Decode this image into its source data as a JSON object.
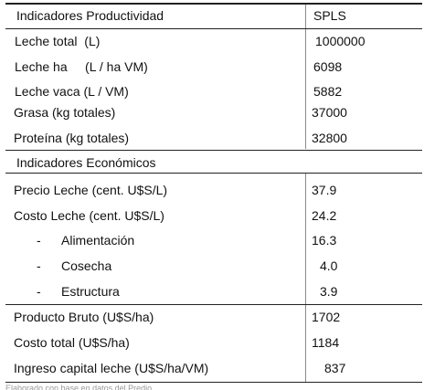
{
  "productivity": {
    "header_label": "Indicadores Productividad",
    "header_value": "SPLS",
    "rows": [
      {
        "label": "Leche total  (L)",
        "value": "1000000"
      },
      {
        "label": "Leche ha     (L / ha VM)",
        "value": "6098"
      },
      {
        "label": "Leche vaca (L / VM)",
        "value": "5882"
      },
      {
        "label": "Grasa (kg totales)",
        "value": "37000"
      },
      {
        "label": "Proteína (kg totales)",
        "value": "32800"
      }
    ]
  },
  "economic": {
    "header_label": "Indicadores Económicos",
    "rows": [
      {
        "label": "Precio Leche (cent. U$S/L)",
        "value": "37.9"
      },
      {
        "label": "Costo Leche (cent. U$S/L)",
        "value": "24.2"
      }
    ],
    "sub_rows": [
      {
        "dash": "-",
        "label": "Alimentación",
        "value": "16.3"
      },
      {
        "dash": "-",
        "label": "Cosecha",
        "value": "4.0"
      },
      {
        "dash": "-",
        "label": "Estructura",
        "value": "3.9"
      }
    ],
    "totals": [
      {
        "label": "Producto Bruto (U$S/ha)",
        "value": "1702"
      },
      {
        "label": "Costo total (U$S/ha)",
        "value": "1184"
      },
      {
        "label": "Ingreso capital leche (U$S/ha/VM)",
        "value": "837"
      }
    ]
  },
  "footer": {
    "note": "Elaborado con base en datos del Predio"
  }
}
